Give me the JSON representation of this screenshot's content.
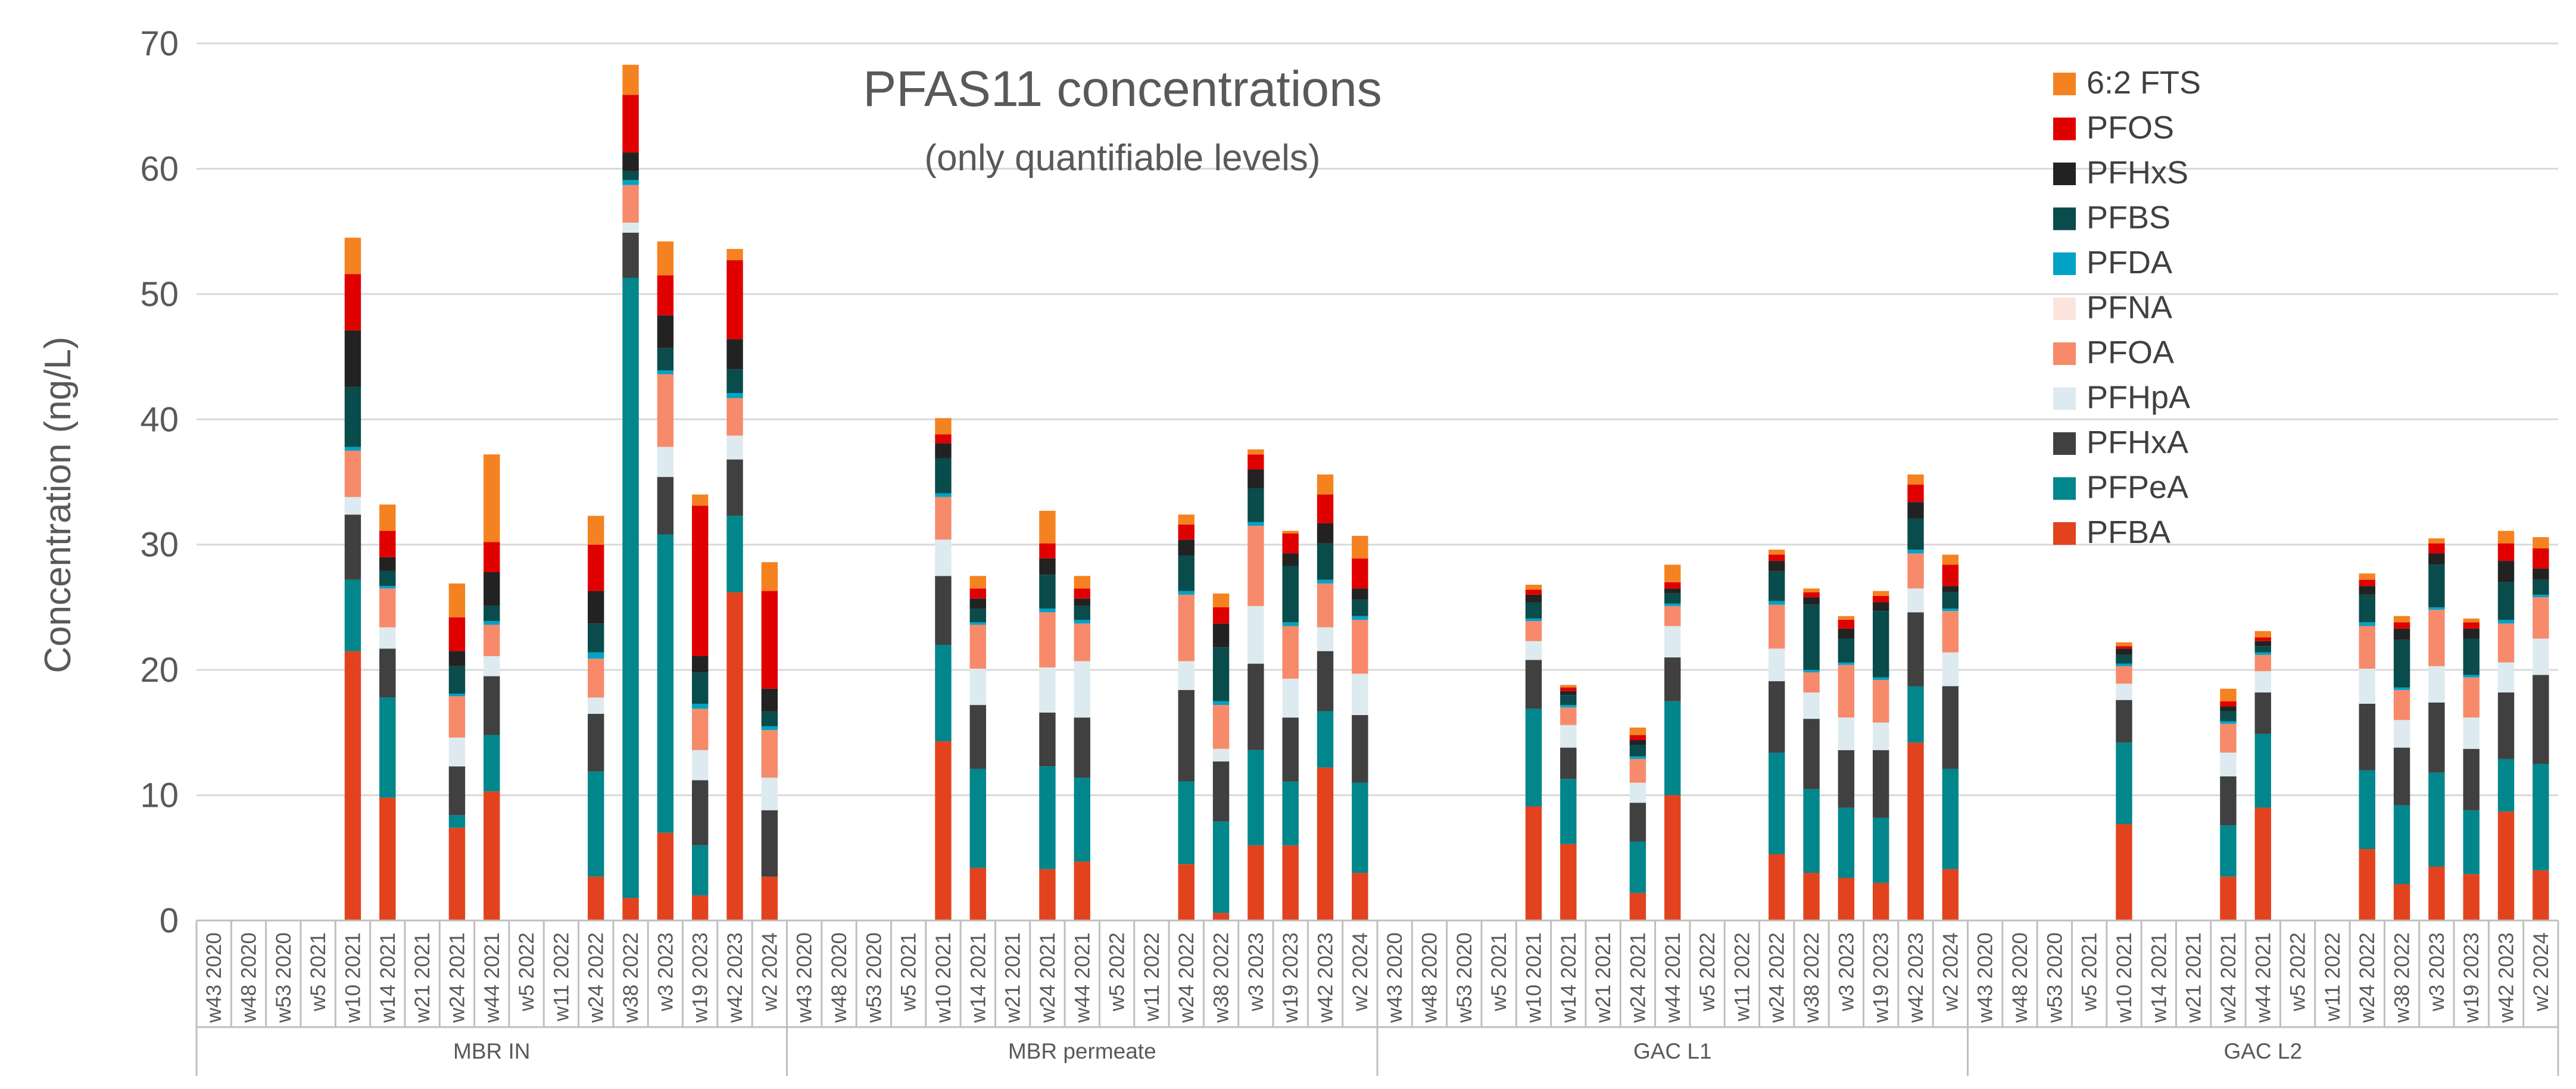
{
  "chart_data": {
    "type": "bar",
    "stacked": true,
    "title": "PFAS11 concentrations",
    "subtitle": "(only quantifiable levels)",
    "ylabel": "Concentration (ng/L)",
    "xlabel": "",
    "ylim": [
      0,
      70
    ],
    "yticks": [
      0,
      10,
      20,
      30,
      40,
      50,
      60,
      70
    ],
    "grid": true,
    "legend_position": "top-right",
    "legend_order": [
      "6:2 FTS",
      "PFOS",
      "PFHxS",
      "PFBS",
      "PFDA",
      "PFNA",
      "PFOA",
      "PFHpA",
      "PFHxA",
      "PFPeA",
      "PFBA"
    ],
    "groups": [
      "MBR IN",
      "MBR permeate",
      "GAC L1",
      "GAC L2"
    ],
    "categories": [
      "w43 2020",
      "w48 2020",
      "w53 2020",
      "w5 2021",
      "w10 2021",
      "w14 2021",
      "w21 2021",
      "w24 2021",
      "w44 2021",
      "w5 2022",
      "w11 2022",
      "w24 2022",
      "w38 2022",
      "w3 2023",
      "w19 2023",
      "w42 2023",
      "w2 2024"
    ],
    "series": [
      {
        "name": "PFBA",
        "color": "#E2431E",
        "values": [
          [
            0,
            0,
            0,
            0,
            21.5,
            9.8,
            0,
            7.4,
            10.3,
            0,
            0,
            3.5,
            1.8,
            7,
            2,
            26.2,
            3.5
          ],
          [
            0,
            0,
            0,
            0,
            14.3,
            4.2,
            0,
            4.1,
            4.7,
            0,
            0,
            4.5,
            0.6,
            6,
            6,
            12.2,
            3.8
          ],
          [
            0,
            0,
            0,
            0,
            9.1,
            6.1,
            0,
            2.2,
            10,
            0,
            0,
            5.3,
            3.8,
            3.4,
            3,
            14.2,
            4.1
          ],
          [
            0,
            0,
            0,
            0,
            7.7,
            0,
            0,
            3.5,
            9,
            0,
            0,
            5.7,
            2.9,
            4.3,
            3.7,
            8.7,
            4
          ]
        ]
      },
      {
        "name": "PFPeA",
        "color": "#00868B",
        "values": [
          [
            0,
            0,
            0,
            0,
            5.7,
            8,
            0,
            1,
            4.5,
            0,
            0,
            8.4,
            49.5,
            23.8,
            4,
            6.1,
            0
          ],
          [
            0,
            0,
            0,
            0,
            7.7,
            7.9,
            0,
            8.2,
            6.7,
            0,
            0,
            6.6,
            7.3,
            7.6,
            5.1,
            4.5,
            7.2
          ],
          [
            0,
            0,
            0,
            0,
            7.8,
            5.2,
            0,
            4.1,
            7.5,
            0,
            0,
            8.1,
            6.7,
            5.6,
            5.2,
            4.5,
            8
          ],
          [
            0,
            0,
            0,
            0,
            6.5,
            0,
            0,
            4.1,
            5.9,
            0,
            0,
            6.3,
            6.3,
            7.5,
            5.1,
            4.2,
            8.5
          ]
        ]
      },
      {
        "name": "PFHxA",
        "color": "#404040",
        "values": [
          [
            0,
            0,
            0,
            0,
            5.2,
            3.9,
            0,
            3.9,
            4.7,
            0,
            0,
            4.6,
            3.6,
            4.6,
            5.2,
            4.5,
            5.3
          ],
          [
            0,
            0,
            0,
            0,
            5.5,
            5.1,
            0,
            4.3,
            4.8,
            0,
            0,
            7.3,
            4.8,
            6.9,
            5.1,
            4.8,
            5.4
          ],
          [
            0,
            0,
            0,
            0,
            3.9,
            2.5,
            0,
            3.1,
            3.5,
            0,
            0,
            5.7,
            5.6,
            4.6,
            5.4,
            5.9,
            6.6
          ],
          [
            0,
            0,
            0,
            0,
            3.4,
            0,
            0,
            3.9,
            3.3,
            0,
            0,
            5.3,
            4.6,
            5.6,
            4.9,
            5.3,
            7.1
          ]
        ]
      },
      {
        "name": "PFHpA",
        "color": "#DDEBF0",
        "values": [
          [
            0,
            0,
            0,
            0,
            1.4,
            1.7,
            0,
            2.3,
            1.6,
            0,
            0,
            1.3,
            0.8,
            2.4,
            2.4,
            1.9,
            2.6
          ],
          [
            0,
            0,
            0,
            0,
            2.9,
            2.9,
            0,
            3.6,
            4.5,
            0,
            0,
            2.3,
            1,
            4.6,
            3.1,
            1.9,
            3.3
          ],
          [
            0,
            0,
            0,
            0,
            1.5,
            1.8,
            0,
            1.6,
            2.5,
            0,
            0,
            2.6,
            2.1,
            2.6,
            2.2,
            1.9,
            2.7
          ],
          [
            0,
            0,
            0,
            0,
            1.3,
            0,
            0,
            1.9,
            1.7,
            0,
            0,
            2.8,
            2.2,
            2.9,
            2.5,
            2.4,
            2.9
          ]
        ]
      },
      {
        "name": "PFOA",
        "color": "#F78A6B",
        "values": [
          [
            0,
            0,
            0,
            0,
            3.7,
            3.1,
            0,
            3.3,
            2.5,
            0,
            0,
            3.1,
            3,
            5.8,
            3.3,
            3,
            3.8
          ],
          [
            0,
            0,
            0,
            0,
            3.4,
            3.5,
            0,
            4.4,
            3,
            0,
            0,
            5.3,
            3.5,
            6.4,
            4.2,
            3.5,
            4.3
          ],
          [
            0,
            0,
            0,
            0,
            1.6,
            1.4,
            0,
            1.9,
            1.6,
            0,
            0,
            3.5,
            1.6,
            4.2,
            3.4,
            2.8,
            3.3
          ],
          [
            0,
            0,
            0,
            0,
            1.4,
            0,
            0,
            2.3,
            1.3,
            0,
            0,
            3.4,
            2.4,
            4.5,
            3.2,
            3.1,
            3.3
          ]
        ]
      },
      {
        "name": "PFNA",
        "color": "#FCE4DC",
        "values": [
          [
            0,
            0,
            0,
            0,
            0,
            0,
            0,
            0,
            0,
            0,
            0,
            0,
            0,
            0,
            0,
            0,
            0
          ],
          [
            0,
            0,
            0,
            0,
            0,
            0,
            0,
            0,
            0,
            0,
            0,
            0,
            0,
            0,
            0,
            0,
            0
          ],
          [
            0,
            0,
            0,
            0,
            0,
            0,
            0,
            0,
            0,
            0,
            0,
            0,
            0,
            0,
            0,
            0,
            0
          ],
          [
            0,
            0,
            0,
            0,
            0,
            0,
            0,
            0,
            0,
            0,
            0,
            0,
            0,
            0,
            0,
            0,
            0
          ]
        ]
      },
      {
        "name": "PFDA",
        "color": "#00A3C4",
        "values": [
          [
            0,
            0,
            0,
            0,
            0.3,
            0.2,
            0,
            0.2,
            0.3,
            0,
            0,
            0.5,
            0.4,
            0.3,
            0.4,
            0.4,
            0.3
          ],
          [
            0,
            0,
            0,
            0,
            0.3,
            0.2,
            0,
            0.3,
            0.3,
            0,
            0,
            0.3,
            0.3,
            0.3,
            0.3,
            0.3,
            0.3
          ],
          [
            0,
            0,
            0,
            0,
            0.2,
            0.2,
            0,
            0.2,
            0.2,
            0,
            0,
            0.3,
            0.2,
            0.2,
            0.2,
            0.3,
            0.2
          ],
          [
            0,
            0,
            0,
            0,
            0.2,
            0,
            0,
            0.2,
            0.2,
            0,
            0,
            0.3,
            0.2,
            0.2,
            0.2,
            0.3,
            0.2
          ]
        ]
      },
      {
        "name": "PFBS",
        "color": "#0A4B4B",
        "values": [
          [
            0,
            0,
            0,
            0,
            4.8,
            1.2,
            0,
            2.2,
            1.2,
            0,
            0,
            2.3,
            0.7,
            1.8,
            2.5,
            1.9,
            1.2
          ],
          [
            0,
            0,
            0,
            0,
            2.8,
            1.1,
            0,
            2.7,
            1.1,
            0,
            0,
            2.8,
            4.3,
            2.7,
            4.5,
            2.9,
            1.3
          ],
          [
            0,
            0,
            0,
            0,
            1.3,
            0.8,
            0,
            0.9,
            0.8,
            0,
            0,
            2.4,
            5.2,
            1.9,
            5.3,
            2.5,
            1.3
          ],
          [
            0,
            0,
            0,
            0,
            0.7,
            0,
            0,
            0.8,
            0.5,
            0,
            0,
            2.2,
            3.8,
            3.4,
            2.9,
            3,
            1.2
          ]
        ]
      },
      {
        "name": "PFHxS",
        "color": "#222222",
        "values": [
          [
            0,
            0,
            0,
            0,
            4.5,
            1.1,
            0,
            1.2,
            2.7,
            0,
            0,
            2.6,
            1.5,
            2.6,
            1.3,
            2.4,
            1.8
          ],
          [
            0,
            0,
            0,
            0,
            1.2,
            0.8,
            0,
            1.3,
            0.6,
            0,
            0,
            1.3,
            1.9,
            1.5,
            1,
            1.6,
            0.9
          ],
          [
            0,
            0,
            0,
            0,
            0.6,
            0.3,
            0,
            0.4,
            0.4,
            0,
            0,
            0.8,
            0.6,
            0.8,
            0.7,
            1.3,
            0.5
          ],
          [
            0,
            0,
            0,
            0,
            0.5,
            0,
            0,
            0.4,
            0.4,
            0,
            0,
            0.7,
            0.9,
            0.9,
            0.8,
            1.7,
            0.9
          ]
        ]
      },
      {
        "name": "PFOS",
        "color": "#E00000",
        "values": [
          [
            0,
            0,
            0,
            0,
            4.5,
            2.1,
            0,
            2.7,
            2.4,
            0,
            0,
            3.7,
            4.6,
            3.2,
            12,
            6.3,
            7.8
          ],
          [
            0,
            0,
            0,
            0,
            0.7,
            0.8,
            0,
            1.2,
            0.8,
            0,
            0,
            1.2,
            1.3,
            1.2,
            1.6,
            2.3,
            2.4
          ],
          [
            0,
            0,
            0,
            0,
            0.4,
            0.3,
            0,
            0.4,
            0.5,
            0,
            0,
            0.5,
            0.4,
            0.7,
            0.5,
            1.4,
            1.7
          ],
          [
            0,
            0,
            0,
            0,
            0.2,
            0,
            0,
            0.4,
            0.3,
            0,
            0,
            0.5,
            0.5,
            0.8,
            0.5,
            1.4,
            1.6
          ]
        ]
      },
      {
        "name": "6:2 FTS",
        "color": "#F58220",
        "values": [
          [
            0,
            0,
            0,
            0,
            2.9,
            2.1,
            0,
            2.7,
            7,
            0,
            0,
            2.3,
            2.4,
            2.7,
            0.9,
            0.9,
            2.3
          ],
          [
            0,
            0,
            0,
            0,
            1.3,
            1,
            0,
            2.6,
            1,
            0,
            0,
            0.8,
            1.1,
            0.4,
            0.2,
            1.6,
            1.8
          ],
          [
            0,
            0,
            0,
            0,
            0.4,
            0.2,
            0,
            0.6,
            1.4,
            0,
            0,
            0.4,
            0.3,
            0.3,
            0.4,
            0.8,
            0.8
          ],
          [
            0,
            0,
            0,
            0,
            0.3,
            0,
            0,
            1,
            0.5,
            0,
            0,
            0.5,
            0.5,
            0.4,
            0.3,
            1,
            0.9
          ]
        ]
      }
    ]
  }
}
